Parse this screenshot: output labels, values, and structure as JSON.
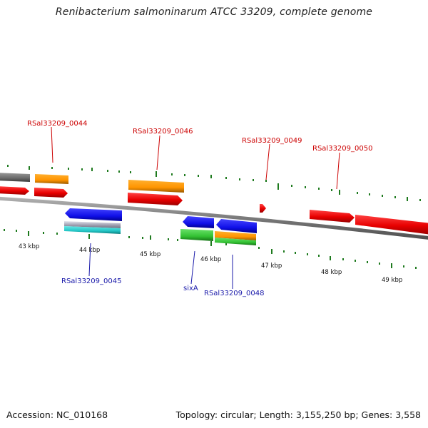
{
  "title": "Renibacterium salmoninarum ATCC 33209, complete genome",
  "footer": {
    "accession": "Accession: NC_010168",
    "summary": "Topology: circular; Length: 3,155,250 bp; Genes: 3,558"
  },
  "colors": {
    "background": "#ffffff",
    "backbone": "#8a8a8a",
    "tick": "#1e7a1e",
    "forward_label": "#cc0000",
    "reverse_label": "#1a1aaa",
    "cds_red": "#ee1111",
    "orange": "#ff9900",
    "grey_gene": "#777777",
    "blue": "#1a1aee",
    "green": "#33cc33",
    "cyan": "#22cccc",
    "silver": "#b8b8c8"
  },
  "scale": {
    "unit": "kbp",
    "tick_labels": [
      "43 kbp",
      "44 kbp",
      "45 kbp",
      "46 kbp",
      "47 kbp",
      "48 kbp",
      "49 kbp"
    ]
  },
  "labels": {
    "forward": [
      "RSal33209_0044",
      "RSal33209_0046",
      "RSal33209_0049",
      "RSal33209_0050"
    ],
    "reverse": [
      "RSal33209_0045",
      "sixA",
      "RSal33209_0048"
    ]
  },
  "legend_icons": {
    "forward_strand": "arrow-right-icon",
    "reverse_strand": "arrow-left-icon"
  }
}
